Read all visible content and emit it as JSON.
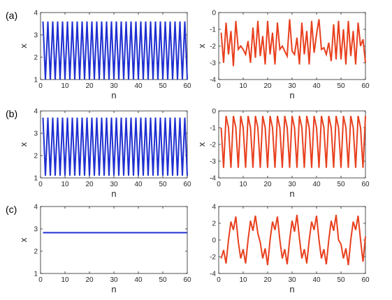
{
  "panel_labels": [
    "(a)",
    "(b)",
    "(c)"
  ],
  "colors": {
    "left": "#1f2fd1",
    "right": "#e8401e",
    "axis": "#262626"
  },
  "chart_data": [
    {
      "id": "a-left",
      "type": "line",
      "panel": "(a)",
      "xlabel": "n",
      "ylabel": "x",
      "xlim": [
        0,
        60
      ],
      "ylim": [
        1,
        4
      ],
      "xticks": [
        0,
        10,
        20,
        30,
        40,
        50,
        60
      ],
      "yticks": [
        1,
        2,
        3,
        4
      ],
      "grid": false,
      "color": "#1f2fd1",
      "series": [
        {
          "name": "",
          "pattern": "period-2",
          "x_start": 1,
          "x_end": 60,
          "values": [
            3.6,
            1.0
          ]
        }
      ]
    },
    {
      "id": "a-right",
      "type": "line",
      "panel": "(a)",
      "xlabel": "n",
      "ylabel": "x",
      "xlim": [
        0,
        60
      ],
      "ylim": [
        -4,
        0
      ],
      "xticks": [
        0,
        10,
        20,
        30,
        40,
        50,
        60
      ],
      "yticks": [
        -4,
        -3,
        -2,
        -1,
        0
      ],
      "grid": false,
      "color": "#e8401e",
      "series": [
        {
          "name": "",
          "x": [
            1,
            2,
            3,
            4,
            5,
            6,
            7,
            8,
            9,
            10,
            11,
            12,
            13,
            14,
            15,
            16,
            17,
            18,
            19,
            20,
            21,
            22,
            23,
            24,
            25,
            26,
            27,
            28,
            29,
            30,
            31,
            32,
            33,
            34,
            35,
            36,
            37,
            38,
            39,
            40,
            41,
            42,
            43,
            44,
            45,
            46,
            47,
            48,
            49,
            50,
            51,
            52,
            53,
            54,
            55,
            56,
            57,
            58,
            59,
            60
          ],
          "values": [
            -1.2,
            -3.0,
            -0.6,
            -2.5,
            -1.1,
            -3.2,
            -0.5,
            -2.2,
            -2.0,
            -2.2,
            -2.5,
            -1.7,
            -3.0,
            -0.9,
            -2.7,
            -0.5,
            -2.6,
            -1.4,
            -3.1,
            -0.5,
            -2.5,
            -1.2,
            -3.1,
            -0.6,
            -2.2,
            -2.0,
            -2.3,
            -2.6,
            -0.4,
            -2.3,
            -2.5,
            -1.5,
            -3.1,
            -0.6,
            -2.5,
            -1.1,
            -3.1,
            -0.5,
            -2.4,
            -1.3,
            -0.4,
            -2.2,
            -2.1,
            -2.5,
            -1.8,
            -2.9,
            -0.7,
            -2.8,
            -0.5,
            -2.8,
            -1.0,
            -3.1,
            -0.5,
            -2.6,
            -1.1,
            -3.1,
            -0.6,
            -2.0,
            -1.6,
            -3.0
          ]
        }
      ]
    },
    {
      "id": "b-left",
      "type": "line",
      "panel": "(b)",
      "xlabel": "n",
      "ylabel": "x",
      "xlim": [
        0,
        60
      ],
      "ylim": [
        1,
        4
      ],
      "xticks": [
        0,
        10,
        20,
        30,
        40,
        50,
        60
      ],
      "yticks": [
        1,
        2,
        3,
        4
      ],
      "grid": false,
      "color": "#1f2fd1",
      "series": [
        {
          "name": "",
          "pattern": "period-2",
          "x_start": 1,
          "x_end": 60,
          "values": [
            3.7,
            1.1
          ]
        }
      ]
    },
    {
      "id": "b-right",
      "type": "line",
      "panel": "(b)",
      "xlabel": "n",
      "ylabel": "x",
      "xlim": [
        0,
        60
      ],
      "ylim": [
        -4,
        0
      ],
      "xticks": [
        0,
        10,
        20,
        30,
        40,
        50,
        60
      ],
      "yticks": [
        -4,
        -3,
        -2,
        -1,
        0
      ],
      "grid": false,
      "color": "#e8401e",
      "series": [
        {
          "name": "",
          "pattern": "period-3",
          "x_start": 1,
          "x_end": 60,
          "values": [
            -1.0,
            -3.4,
            -0.3
          ]
        }
      ]
    },
    {
      "id": "c-left",
      "type": "line",
      "panel": "(c)",
      "xlabel": "n",
      "ylabel": "x",
      "xlim": [
        0,
        60
      ],
      "ylim": [
        1,
        4
      ],
      "xticks": [
        0,
        10,
        20,
        30,
        40,
        50,
        60
      ],
      "yticks": [
        1,
        2,
        3,
        4
      ],
      "grid": false,
      "color": "#1f2fd1",
      "series": [
        {
          "name": "",
          "pattern": "constant",
          "x_start": 1,
          "x_end": 60,
          "values": [
            2.83
          ]
        }
      ]
    },
    {
      "id": "c-right",
      "type": "line",
      "panel": "(c)",
      "xlabel": "n",
      "ylabel": "",
      "xlim": [
        0,
        60
      ],
      "ylim": [
        -4,
        4
      ],
      "xticks": [
        0,
        10,
        20,
        30,
        40,
        50,
        60
      ],
      "yticks": [
        -4,
        -2,
        0,
        2,
        4
      ],
      "grid": false,
      "color": "#e8401e",
      "series": [
        {
          "name": "",
          "x": [
            1,
            2,
            3,
            4,
            5,
            6,
            7,
            8,
            9,
            10,
            11,
            12,
            13,
            14,
            15,
            16,
            17,
            18,
            19,
            20,
            21,
            22,
            23,
            24,
            25,
            26,
            27,
            28,
            29,
            30,
            31,
            32,
            33,
            34,
            35,
            36,
            37,
            38,
            39,
            40,
            41,
            42,
            43,
            44,
            45,
            46,
            47,
            48,
            49,
            50,
            51,
            52,
            53,
            54,
            55,
            56,
            57,
            58,
            59,
            60
          ],
          "values": [
            -2.2,
            -1.2,
            -2.8,
            0.0,
            2.2,
            1.2,
            2.8,
            -0.2,
            -2.2,
            -1.1,
            -2.8,
            0.0,
            2.3,
            1.1,
            2.9,
            0.8,
            -0.3,
            -2.2,
            -1.0,
            -3.0,
            0.0,
            2.2,
            1.2,
            2.8,
            0.0,
            -2.2,
            -1.1,
            -2.9,
            0.0,
            2.3,
            1.0,
            3.0,
            0.2,
            -2.2,
            -1.1,
            -2.8,
            0.0,
            2.2,
            1.2,
            2.9,
            0.0,
            -2.2,
            -1.1,
            -2.9,
            0.0,
            2.3,
            1.1,
            3.0,
            0.0,
            -0.5,
            -2.2,
            -1.0,
            -3.0,
            0.0,
            2.2,
            1.2,
            2.9,
            0.0,
            -2.6,
            0.4
          ]
        }
      ]
    }
  ]
}
